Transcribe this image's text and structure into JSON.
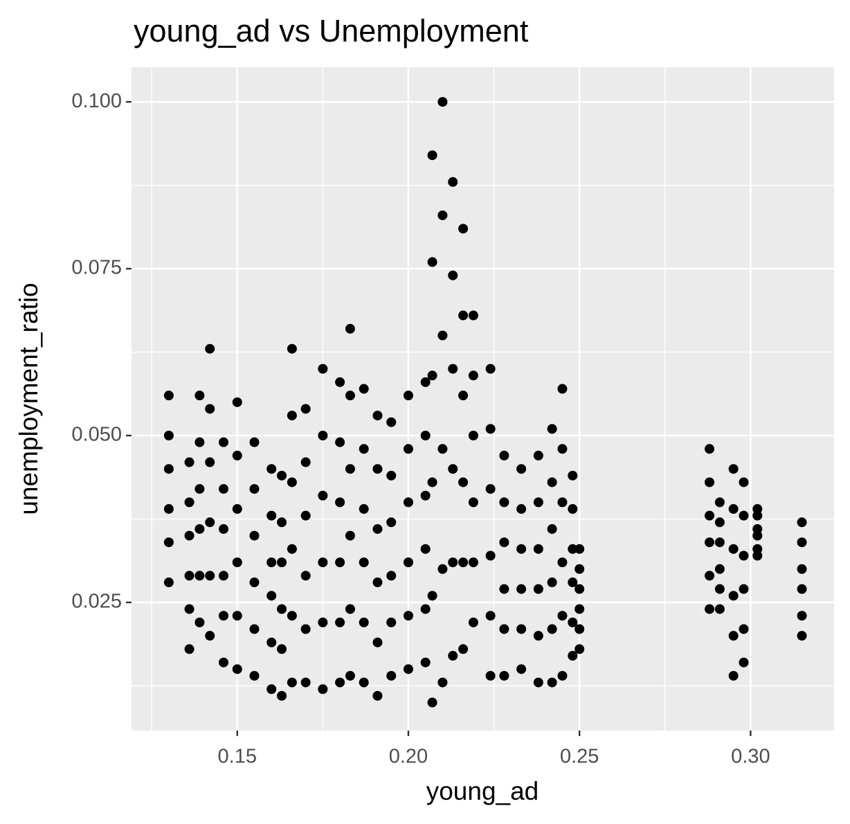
{
  "chart_data": {
    "type": "scatter",
    "title": "young_ad vs Unemployment",
    "x_label": "young_ad",
    "y_label": "unemployment_ratio",
    "color": "#000000",
    "grid": true,
    "xlim": [
      0.1191,
      0.3244
    ],
    "ylim": [
      0.0058,
      0.1052
    ],
    "xticks": [
      0.15,
      {
        "value": 0.2,
        "label": "0.20"
      },
      0.25,
      {
        "value": 0.3,
        "label": "0.30"
      }
    ],
    "yticks": [
      0.025,
      {
        "value": 0.05,
        "label": "0.050"
      },
      0.075,
      {
        "value": 0.1,
        "label": "0.100"
      }
    ],
    "x_minor_ticks": [
      0.125,
      0.175,
      0.225,
      0.275
    ],
    "y_minor_ticks": [
      0.0125,
      0.0375,
      0.0625,
      0.0875
    ],
    "x": [
      0.13,
      0.13,
      0.13,
      0.13,
      0.13,
      0.13,
      0.136,
      0.136,
      0.136,
      0.136,
      0.136,
      0.136,
      0.139,
      0.139,
      0.139,
      0.139,
      0.139,
      0.139,
      0.142,
      0.142,
      0.142,
      0.142,
      0.142,
      0.142,
      0.146,
      0.146,
      0.146,
      0.146,
      0.146,
      0.146,
      0.15,
      0.15,
      0.15,
      0.15,
      0.15,
      0.15,
      0.155,
      0.155,
      0.155,
      0.155,
      0.155,
      0.155,
      0.16,
      0.16,
      0.16,
      0.16,
      0.16,
      0.16,
      0.163,
      0.163,
      0.163,
      0.163,
      0.163,
      0.163,
      0.166,
      0.166,
      0.166,
      0.166,
      0.166,
      0.166,
      0.17,
      0.17,
      0.17,
      0.17,
      0.17,
      0.17,
      0.175,
      0.175,
      0.175,
      0.175,
      0.175,
      0.175,
      0.18,
      0.18,
      0.18,
      0.18,
      0.18,
      0.18,
      0.183,
      0.183,
      0.183,
      0.183,
      0.183,
      0.183,
      0.187,
      0.187,
      0.187,
      0.187,
      0.187,
      0.187,
      0.191,
      0.191,
      0.191,
      0.191,
      0.191,
      0.191,
      0.195,
      0.195,
      0.195,
      0.195,
      0.195,
      0.195,
      0.2,
      0.2,
      0.2,
      0.2,
      0.2,
      0.2,
      0.205,
      0.205,
      0.205,
      0.205,
      0.205,
      0.205,
      0.207,
      0.207,
      0.207,
      0.207,
      0.207,
      0.207,
      0.21,
      0.21,
      0.21,
      0.21,
      0.21,
      0.21,
      0.213,
      0.213,
      0.213,
      0.213,
      0.213,
      0.213,
      0.216,
      0.216,
      0.216,
      0.216,
      0.216,
      0.216,
      0.219,
      0.219,
      0.219,
      0.219,
      0.219,
      0.219,
      0.224,
      0.224,
      0.224,
      0.224,
      0.224,
      0.224,
      0.228,
      0.228,
      0.228,
      0.228,
      0.228,
      0.228,
      0.233,
      0.233,
      0.233,
      0.233,
      0.233,
      0.233,
      0.238,
      0.238,
      0.238,
      0.238,
      0.238,
      0.238,
      0.242,
      0.242,
      0.242,
      0.242,
      0.242,
      0.242,
      0.245,
      0.245,
      0.245,
      0.245,
      0.245,
      0.245,
      0.248,
      0.248,
      0.248,
      0.248,
      0.248,
      0.248,
      0.25,
      0.25,
      0.25,
      0.25,
      0.25,
      0.25,
      0.288,
      0.288,
      0.288,
      0.288,
      0.288,
      0.288,
      0.291,
      0.291,
      0.291,
      0.291,
      0.291,
      0.291,
      0.295,
      0.295,
      0.295,
      0.295,
      0.295,
      0.295,
      0.298,
      0.298,
      0.298,
      0.298,
      0.298,
      0.298,
      0.302,
      0.302,
      0.302,
      0.302,
      0.302,
      0.302,
      0.315,
      0.315,
      0.315,
      0.315,
      0.315,
      0.315
    ],
    "values": [
      0.028,
      0.034,
      0.039,
      0.045,
      0.05,
      0.056,
      0.018,
      0.024,
      0.029,
      0.035,
      0.04,
      0.046,
      0.022,
      0.029,
      0.036,
      0.042,
      0.049,
      0.056,
      0.02,
      0.029,
      0.037,
      0.046,
      0.054,
      0.063,
      0.016,
      0.023,
      0.029,
      0.036,
      0.042,
      0.049,
      0.015,
      0.023,
      0.031,
      0.039,
      0.047,
      0.055,
      0.014,
      0.021,
      0.028,
      0.035,
      0.042,
      0.049,
      0.012,
      0.019,
      0.026,
      0.031,
      0.038,
      0.045,
      0.011,
      0.018,
      0.024,
      0.031,
      0.037,
      0.044,
      0.013,
      0.023,
      0.033,
      0.043,
      0.053,
      0.063,
      0.013,
      0.021,
      0.029,
      0.038,
      0.046,
      0.054,
      0.012,
      0.022,
      0.031,
      0.041,
      0.05,
      0.06,
      0.013,
      0.022,
      0.031,
      0.04,
      0.049,
      0.058,
      0.014,
      0.024,
      0.035,
      0.045,
      0.056,
      0.066,
      0.013,
      0.022,
      0.031,
      0.039,
      0.048,
      0.057,
      0.011,
      0.019,
      0.028,
      0.036,
      0.045,
      0.053,
      0.014,
      0.022,
      0.029,
      0.037,
      0.044,
      0.052,
      0.015,
      0.023,
      0.031,
      0.04,
      0.048,
      0.056,
      0.016,
      0.024,
      0.033,
      0.041,
      0.05,
      0.058,
      0.01,
      0.026,
      0.043,
      0.059,
      0.076,
      0.092,
      0.013,
      0.03,
      0.048,
      0.065,
      0.083,
      0.1,
      0.017,
      0.031,
      0.045,
      0.06,
      0.074,
      0.088,
      0.018,
      0.031,
      0.043,
      0.056,
      0.068,
      0.081,
      0.022,
      0.031,
      0.04,
      0.05,
      0.059,
      0.068,
      0.014,
      0.023,
      0.032,
      0.042,
      0.051,
      0.06,
      0.014,
      0.021,
      0.027,
      0.034,
      0.04,
      0.047,
      0.015,
      0.021,
      0.027,
      0.033,
      0.039,
      0.045,
      0.013,
      0.02,
      0.027,
      0.033,
      0.04,
      0.047,
      0.013,
      0.021,
      0.028,
      0.036,
      0.043,
      0.051,
      0.014,
      0.023,
      0.031,
      0.04,
      0.048,
      0.057,
      0.017,
      0.022,
      0.028,
      0.033,
      0.039,
      0.044,
      0.018,
      0.021,
      0.024,
      0.027,
      0.03,
      0.033,
      0.024,
      0.029,
      0.034,
      0.038,
      0.043,
      0.048,
      0.024,
      0.027,
      0.03,
      0.034,
      0.037,
      0.04,
      0.014,
      0.02,
      0.026,
      0.033,
      0.039,
      0.045,
      0.016,
      0.021,
      0.027,
      0.032,
      0.038,
      0.043,
      0.032,
      0.033,
      0.035,
      0.036,
      0.038,
      0.039,
      0.02,
      0.023,
      0.027,
      0.03,
      0.034,
      0.037
    ]
  }
}
